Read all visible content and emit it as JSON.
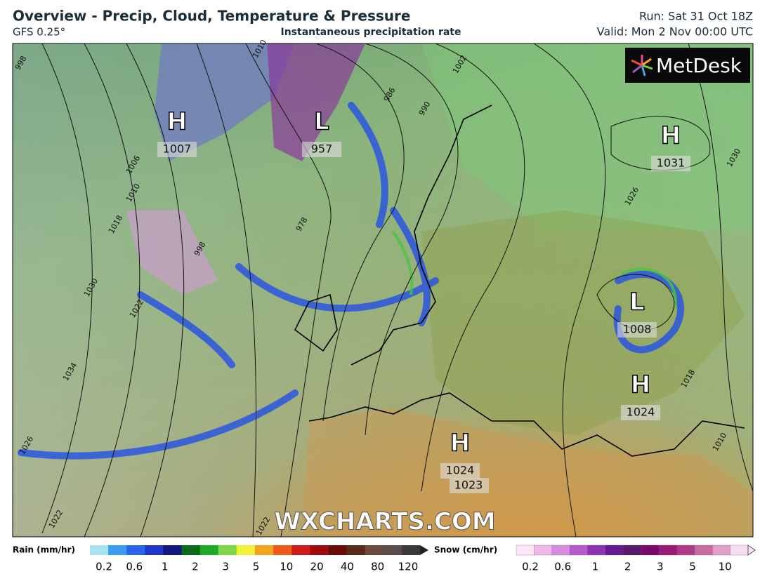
{
  "header": {
    "title": "Overview - Precip, Cloud, Temperature & Pressure",
    "model": "GFS 0.25°",
    "subtitle": "Instantaneous precipitation rate",
    "run": "Run: Sat 31 Oct 18Z",
    "valid": "Valid: Mon 2 Nov 00:00 UTC"
  },
  "map": {
    "logo": "MetDesk",
    "watermark": "WXCHARTS.COM",
    "pressure_centers": [
      {
        "symbol": "H",
        "value": 1007
      },
      {
        "symbol": "L",
        "value": 957
      },
      {
        "symbol": "H",
        "value": 1031
      },
      {
        "symbol": "L",
        "value": 1008
      },
      {
        "symbol": "H",
        "value": 1024
      },
      {
        "symbol": "H",
        "value": 1024
      }
    ],
    "extra_labels": [
      1023
    ],
    "isobar_labels": [
      1010,
      1002,
      986,
      990,
      978,
      998,
      1006,
      1010,
      1018,
      1030,
      1022,
      1034,
      1026,
      1022,
      1022,
      1026,
      1018,
      1010,
      1030,
      998
    ]
  },
  "legend": {
    "rain_label": "Rain (mm/hr)",
    "rain_ticks": [
      0.2,
      0.6,
      1,
      2,
      3,
      5,
      10,
      20,
      40,
      80,
      120
    ],
    "snow_label": "Snow (cm/hr)",
    "snow_ticks": [
      0.2,
      0.6,
      1,
      2,
      3,
      5,
      10
    ]
  }
}
